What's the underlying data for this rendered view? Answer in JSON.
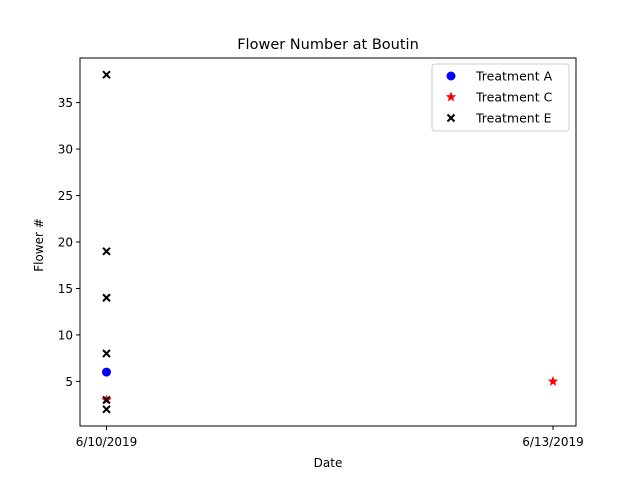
{
  "chart_data": {
    "type": "scatter",
    "title": "Flower Number at Boutin",
    "xlabel": "Date",
    "ylabel": "Flower #",
    "x_categories": [
      "6/10/2019",
      "6/13/2019"
    ],
    "ylim": [
      0.2,
      39.8
    ],
    "yticks": [
      5,
      10,
      15,
      20,
      25,
      30,
      35
    ],
    "legend_position": "upper right",
    "grid": false,
    "series": [
      {
        "name": "Treatment A",
        "marker": "circle",
        "color": "#0000ff",
        "points": [
          {
            "x": "6/10/2019",
            "y": 6
          }
        ]
      },
      {
        "name": "Treatment C",
        "marker": "star",
        "color": "#ff0000",
        "points": [
          {
            "x": "6/10/2019",
            "y": 3
          },
          {
            "x": "6/13/2019",
            "y": 5
          }
        ]
      },
      {
        "name": "Treatment E",
        "marker": "x",
        "color": "#000000",
        "points": [
          {
            "x": "6/10/2019",
            "y": 38
          },
          {
            "x": "6/10/2019",
            "y": 19
          },
          {
            "x": "6/10/2019",
            "y": 14
          },
          {
            "x": "6/10/2019",
            "y": 8
          },
          {
            "x": "6/10/2019",
            "y": 3
          },
          {
            "x": "6/10/2019",
            "y": 2
          }
        ]
      }
    ]
  }
}
